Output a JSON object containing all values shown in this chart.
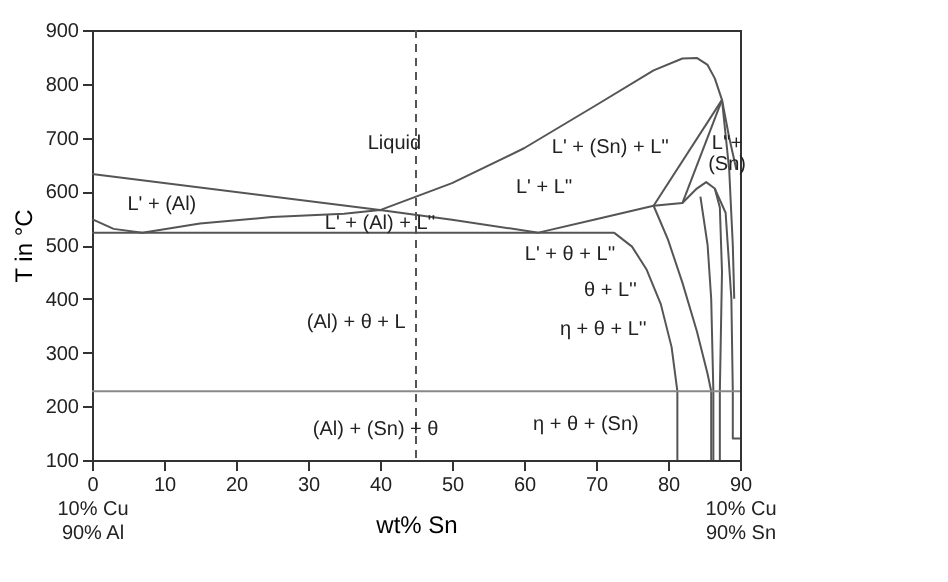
{
  "chart_data": {
    "type": "line",
    "xlabel": "wt% Sn",
    "ylabel": "T in °C",
    "xlim": [
      0,
      90
    ],
    "ylim": [
      100,
      900
    ],
    "xticks": [
      {
        "value": 0,
        "label": "0\n10% Cu\n90% Al"
      },
      10,
      20,
      30,
      40,
      50,
      60,
      70,
      80,
      {
        "value": 90,
        "label": "90\n10% Cu\n90% Sn"
      }
    ],
    "yticks": [
      100,
      200,
      300,
      400,
      500,
      600,
      700,
      800,
      900
    ],
    "grid": false,
    "legend": false,
    "marker": "none",
    "line_style": "solid",
    "series": [
      {
        "color": "#555555",
        "x": [
          0,
          40,
          50,
          60,
          70,
          78,
          82,
          84,
          85.5,
          86.5,
          87.5,
          88.5,
          89.5
        ],
        "values": [
          632,
          565,
          615,
          680,
          760,
          825,
          847,
          848,
          835,
          810,
          770,
          700,
          640
        ]
      },
      {
        "color": "#555555",
        "x": [
          0,
          3,
          7,
          15,
          25,
          35,
          40,
          50,
          62,
          70,
          78,
          82,
          84,
          85.3,
          86.5,
          87.2,
          87.5,
          87.2,
          87.2
        ],
        "values": [
          548,
          530,
          523,
          540,
          552,
          558,
          565,
          547,
          523,
          548,
          573,
          578,
          605,
          617,
          605,
          570,
          450,
          228,
          100
        ]
      },
      {
        "color": "#555555",
        "x": [
          0,
          72.5
        ],
        "values": [
          523,
          523
        ]
      },
      {
        "color": "#555555",
        "x": [
          78,
          87.5
        ],
        "values": [
          573,
          770
        ]
      },
      {
        "color": "#555555",
        "x": [
          82,
          87.5
        ],
        "values": [
          578,
          770
        ]
      },
      {
        "color": "#555555",
        "x": [
          72.5,
          75,
          77,
          79,
          80.5,
          81.3,
          81.3
        ],
        "values": [
          523,
          497,
          455,
          390,
          310,
          228,
          100
        ]
      },
      {
        "color": "#555555",
        "x": [
          78,
          80,
          82,
          84,
          85.5,
          86,
          86
        ],
        "values": [
          573,
          510,
          430,
          340,
          260,
          228,
          100
        ]
      },
      {
        "color": "#555555",
        "x": [
          84.5,
          85.5,
          86,
          86.3,
          86.3
        ],
        "values": [
          590,
          500,
          400,
          228,
          100
        ]
      },
      {
        "color": "#555555",
        "x": [
          86.5,
          88,
          88.8,
          89,
          89,
          90
        ],
        "values": [
          605,
          560,
          400,
          228,
          140,
          140
        ]
      },
      {
        "color": "#555555",
        "x": [
          87.5,
          88.5,
          89,
          89.2
        ],
        "values": [
          770,
          640,
          500,
          400
        ]
      }
    ],
    "ref_lines": [
      {
        "axis": "y",
        "value": 228,
        "color": "#888888",
        "line_style": "solid"
      },
      {
        "axis": "x",
        "value": 45,
        "color": "#555555",
        "line_style": "dashed"
      }
    ],
    "annotations": [
      "Liquid",
      "L' + (Al)",
      "L' + (Al) + L''",
      "L' + L''",
      "L' + (Sn) + L''",
      "L''+",
      "(Sn)",
      "L' + θ + L''",
      "θ + L''",
      "η + θ  + L''",
      "(Al) + θ + L",
      "(Al) + (Sn) + θ",
      "η + θ + (Sn)"
    ]
  }
}
